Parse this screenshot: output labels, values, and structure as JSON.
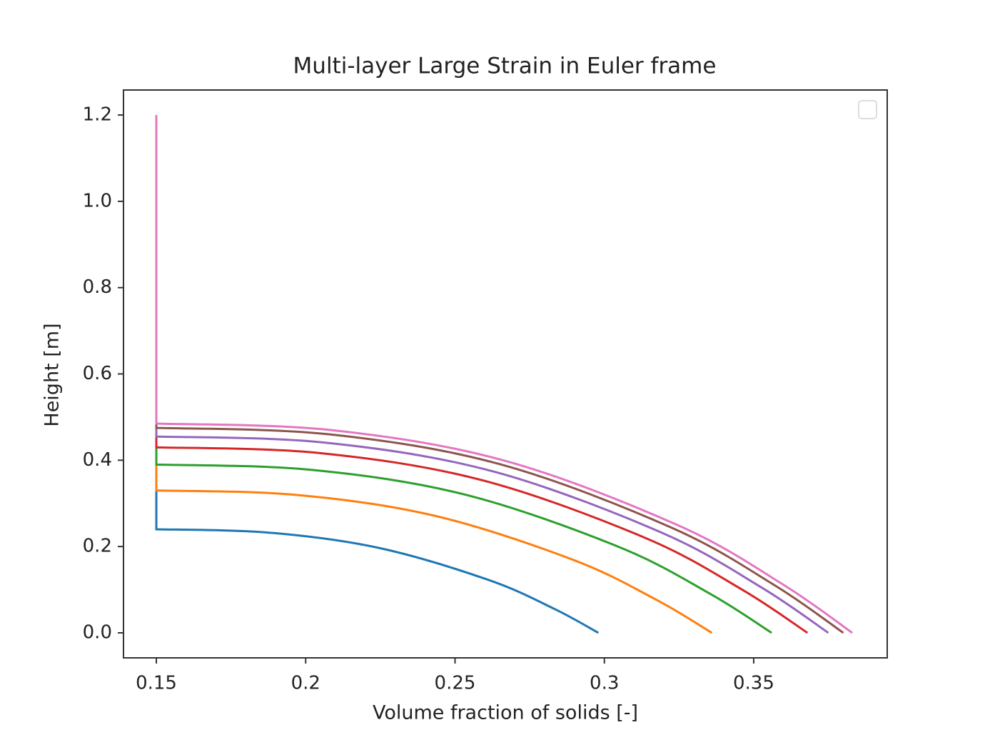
{
  "chart_data": {
    "type": "line",
    "title": "Multi-layer Large Strain in Euler frame",
    "x_label": "Volume fraction of solids [-]",
    "y_label": "Height [m]",
    "xlim": [
      0.139,
      0.3947
    ],
    "ylim": [
      -0.058,
      1.258
    ],
    "xticks": [
      0.15,
      0.2,
      0.25,
      0.3,
      0.35
    ],
    "yticks": [
      {
        "value": 0,
        "label": "0.0"
      },
      0.2,
      0.4,
      0.6,
      0.8,
      {
        "value": 1,
        "label": "1.0"
      },
      1.2
    ],
    "grid": false,
    "legend": "upper right",
    "series": [
      {
        "color": "#1f77b4",
        "x": [
          0.15,
          0.15,
          0.187,
          0.224,
          0.261,
          0.2832,
          0.298
        ],
        "values": [
          0.33,
          0.24,
          0.2326,
          0.1975,
          0.1231,
          0.0557,
          0
        ]
      },
      {
        "color": "#ff7f0e",
        "x": [
          0.15,
          0.15,
          0.1965,
          0.243,
          0.2895,
          0.3174,
          0.336
        ],
        "values": [
          0.39,
          0.33,
          0.3198,
          0.2716,
          0.1693,
          0.0766,
          0
        ]
      },
      {
        "color": "#2ca02c",
        "x": [
          0.15,
          0.15,
          0.2015,
          0.253,
          0.3045,
          0.3354,
          0.356
        ],
        "values": [
          0.43,
          0.39,
          0.3779,
          0.321,
          0.2001,
          0.0905,
          0
        ]
      },
      {
        "color": "#d62728",
        "x": [
          0.15,
          0.15,
          0.2045,
          0.259,
          0.3135,
          0.3462,
          0.368
        ],
        "values": [
          0.455,
          0.43,
          0.4167,
          0.3539,
          0.2206,
          0.0998,
          0
        ]
      },
      {
        "color": "#9467bd",
        "x": [
          0.15,
          0.15,
          0.2063,
          0.2625,
          0.3188,
          0.3525,
          0.375
        ],
        "values": [
          0.475,
          0.455,
          0.4409,
          0.3745,
          0.2334,
          0.1056,
          0
        ]
      },
      {
        "color": "#8c564b",
        "x": [
          0.15,
          0.15,
          0.2075,
          0.265,
          0.3225,
          0.357,
          0.38
        ],
        "values": [
          0.485,
          0.475,
          0.4603,
          0.3909,
          0.2437,
          0.1102,
          0
        ]
      },
      {
        "color": "#e377c2",
        "x": [
          0.15,
          0.15,
          0.2083,
          0.2665,
          0.3248,
          0.3597,
          0.383
        ],
        "values": [
          1.2,
          0.485,
          0.47,
          0.3992,
          0.2488,
          0.1125,
          0
        ]
      }
    ]
  }
}
